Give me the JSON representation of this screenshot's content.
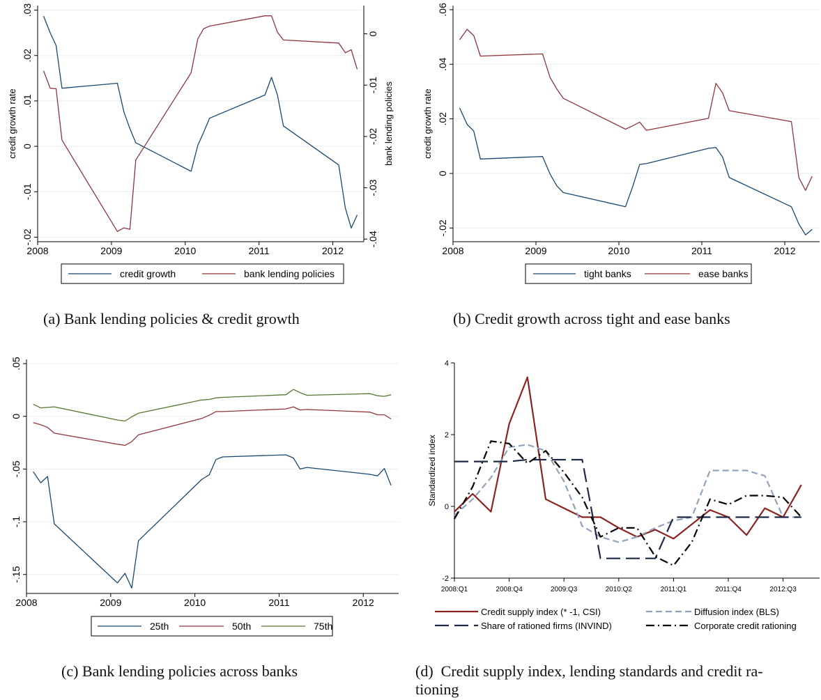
{
  "captions": {
    "a": "(a)  Bank lending policies & credit growth",
    "b": "(b)  Credit growth across tight and ease banks",
    "c": "(c)  Bank lending policies across banks",
    "d": "(d)  Credit supply index, lending standards and credit ra-\ntioning"
  },
  "colors": {
    "navy": "#1a476f",
    "maroon": "#90353b",
    "green": "#55752f",
    "dark_red": "#8b2323",
    "gray_blue": "#8fa3bf",
    "dark_navy": "#1f2a44",
    "black": "#000000"
  },
  "chart_data": [
    {
      "id": "a",
      "type": "line",
      "ylabel": "credit growth rate",
      "y2label": "bank lending policies",
      "xlim": [
        2008,
        2012.42
      ],
      "ylim": [
        -0.021,
        0.031
      ],
      "y2lim": [
        -0.0405,
        0.0055
      ],
      "xticks": [
        2008,
        2009,
        2010,
        2011,
        2012
      ],
      "xtick_labels": [
        "2008",
        "2009",
        "2010",
        "2011",
        "2012"
      ],
      "yticks": [
        -0.02,
        -0.01,
        0,
        0.01,
        0.02,
        0.03
      ],
      "ytick_labels": [
        "-.02",
        "-.01",
        "0",
        ".01",
        ".02",
        ".03"
      ],
      "y2ticks": [
        -0.04,
        -0.03,
        -0.02,
        -0.01,
        0
      ],
      "y2tick_labels": [
        "-.04",
        "-.03",
        "-.02",
        "-.01",
        "0"
      ],
      "grid": true,
      "legend_position": "bottom",
      "series": [
        {
          "name": "credit growth",
          "color": "navy",
          "axis": "left",
          "x": [
            2008.08,
            2008.17,
            2008.25,
            2008.33,
            2009.08,
            2009.17,
            2009.25,
            2009.33,
            2010.08,
            2010.17,
            2010.25,
            2010.33,
            2011.08,
            2011.17,
            2011.25,
            2011.33,
            2012.08,
            2012.17,
            2012.25,
            2012.33
          ],
          "y": [
            0.0287,
            0.025,
            0.0222,
            0.0128,
            0.0139,
            0.0075,
            0.0039,
            0.0008,
            -0.0055,
            0.0002,
            0.0031,
            0.0062,
            0.0113,
            0.0152,
            0.0113,
            0.0045,
            -0.0041,
            -0.0136,
            -0.018,
            -0.0151
          ]
        },
        {
          "name": "bank lending policies",
          "color": "maroon",
          "axis": "right",
          "x": [
            2008.08,
            2008.17,
            2008.25,
            2008.33,
            2009.08,
            2009.17,
            2009.25,
            2009.33,
            2010.08,
            2010.17,
            2010.25,
            2010.33,
            2011.08,
            2011.17,
            2011.25,
            2011.33,
            2012.08,
            2012.17,
            2012.25,
            2012.33
          ],
          "y": [
            -0.0072,
            -0.0106,
            -0.0107,
            -0.0207,
            -0.0385,
            -0.0378,
            -0.0381,
            -0.0246,
            -0.0076,
            -0.001,
            0.001,
            0.0015,
            0.0035,
            0.0035,
            0.0003,
            -0.0012,
            -0.0018,
            -0.0037,
            -0.0031,
            -0.0069
          ]
        }
      ]
    },
    {
      "id": "b",
      "type": "line",
      "ylabel": "credit growth rate",
      "xlim": [
        2008,
        2012.42
      ],
      "ylim": [
        -0.025,
        0.0615
      ],
      "xticks": [
        2008,
        2009,
        2010,
        2011,
        2012
      ],
      "xtick_labels": [
        "2008",
        "2009",
        "2010",
        "2011",
        "2012"
      ],
      "yticks": [
        -0.02,
        0,
        0.02,
        0.04,
        0.06
      ],
      "ytick_labels": [
        "-.02",
        "0",
        ".02",
        ".04",
        ".06"
      ],
      "grid": true,
      "legend_position": "bottom",
      "series": [
        {
          "name": "tight banks",
          "color": "navy",
          "x": [
            2008.08,
            2008.17,
            2008.25,
            2008.33,
            2009.08,
            2009.17,
            2009.25,
            2009.33,
            2010.08,
            2010.17,
            2010.25,
            2010.33,
            2011.08,
            2011.17,
            2011.25,
            2011.33,
            2012.08,
            2012.17,
            2012.25,
            2012.33
          ],
          "y": [
            0.024,
            0.018,
            0.0155,
            0.0053,
            0.0062,
            -0.0002,
            -0.0045,
            -0.007,
            -0.0122,
            -0.0045,
            0.0033,
            0.0036,
            0.0092,
            0.0095,
            0.006,
            -0.0015,
            -0.0122,
            -0.0185,
            -0.0225,
            -0.0205
          ]
        },
        {
          "name": "ease banks",
          "color": "maroon",
          "x": [
            2008.08,
            2008.17,
            2008.25,
            2008.33,
            2009.08,
            2009.17,
            2009.25,
            2009.33,
            2010.08,
            2010.17,
            2010.25,
            2010.33,
            2011.08,
            2011.17,
            2011.25,
            2011.33,
            2012.08,
            2012.17,
            2012.25,
            2012.33
          ],
          "y": [
            0.049,
            0.0528,
            0.0505,
            0.043,
            0.0438,
            0.0352,
            0.031,
            0.0275,
            0.0162,
            0.0175,
            0.0188,
            0.0158,
            0.0202,
            0.033,
            0.0295,
            0.023,
            0.019,
            -0.0015,
            -0.0062,
            -0.001
          ]
        }
      ]
    },
    {
      "id": "c",
      "type": "line",
      "ylabel": "",
      "xlim": [
        2008,
        2012.42
      ],
      "ylim": [
        -0.168,
        0.054
      ],
      "xticks": [
        2008,
        2009,
        2010,
        2011,
        2012
      ],
      "xtick_labels": [
        "2008",
        "2009",
        "2010",
        "2011",
        "2012"
      ],
      "yticks": [
        -0.15,
        -0.1,
        -0.05,
        0,
        0.05
      ],
      "ytick_labels": [
        "-.15",
        "-.1",
        "-.05",
        "0",
        ".05"
      ],
      "grid": true,
      "legend_position": "bottom",
      "series": [
        {
          "name": "25th",
          "color": "navy",
          "x": [
            2008.08,
            2008.17,
            2008.25,
            2008.33,
            2009.08,
            2009.17,
            2009.25,
            2009.33,
            2010.08,
            2010.17,
            2010.25,
            2010.33,
            2011.08,
            2011.17,
            2011.25,
            2011.33,
            2012.08,
            2012.17,
            2012.25,
            2012.33
          ],
          "y": [
            -0.0525,
            -0.063,
            -0.057,
            -0.102,
            -0.158,
            -0.149,
            -0.163,
            -0.118,
            -0.06,
            -0.0555,
            -0.041,
            -0.0385,
            -0.0365,
            -0.0395,
            -0.05,
            -0.0485,
            -0.055,
            -0.0565,
            -0.0495,
            -0.0655
          ]
        },
        {
          "name": "50th",
          "color": "maroon",
          "x": [
            2008.08,
            2008.17,
            2008.25,
            2008.33,
            2009.08,
            2009.17,
            2009.25,
            2009.33,
            2010.08,
            2010.17,
            2010.25,
            2010.33,
            2011.08,
            2011.17,
            2011.25,
            2011.33,
            2012.08,
            2012.17,
            2012.25,
            2012.33
          ],
          "y": [
            -0.006,
            -0.008,
            -0.0105,
            -0.016,
            -0.0265,
            -0.0275,
            -0.024,
            -0.0175,
            -0.002,
            0.001,
            0.0045,
            0.0045,
            0.007,
            0.009,
            0.006,
            0.0065,
            0.004,
            0.0015,
            0.0015,
            -0.0025
          ]
        },
        {
          "name": "75th",
          "color": "green",
          "x": [
            2008.08,
            2008.17,
            2008.25,
            2008.33,
            2009.08,
            2009.17,
            2009.25,
            2009.33,
            2010.08,
            2010.17,
            2010.25,
            2010.33,
            2011.08,
            2011.17,
            2011.25,
            2011.33,
            2012.08,
            2012.17,
            2012.25,
            2012.33
          ],
          "y": [
            0.0115,
            0.008,
            0.0085,
            0.009,
            -0.0035,
            -0.0045,
            -0.0005,
            0.003,
            0.0155,
            0.016,
            0.0175,
            0.018,
            0.0205,
            0.0255,
            0.0225,
            0.02,
            0.0215,
            0.0195,
            0.019,
            0.0205
          ]
        }
      ]
    },
    {
      "id": "d",
      "type": "line",
      "ylabel": "Standardized index",
      "x_is_index": true,
      "xlim": [
        0,
        20
      ],
      "ylim": [
        -2,
        4
      ],
      "xticks": [
        0,
        3,
        6,
        9,
        12,
        15,
        18
      ],
      "xtick_labels": [
        "2008:Q1",
        "2008:Q4",
        "2009:Q3",
        "2010:Q2",
        "2011:Q1",
        "2011:Q4",
        "2012:Q3"
      ],
      "yticks": [
        -2,
        0,
        2,
        4
      ],
      "ytick_labels": [
        "-2",
        "0",
        "2",
        "4"
      ],
      "grid": false,
      "legend_position": "bottom",
      "series": [
        {
          "name": "Credit supply index (* -1, CSI)",
          "color": "dark_red",
          "dash": "solid",
          "x": [
            0,
            1,
            2,
            3,
            4,
            5,
            6,
            7,
            8,
            9,
            10,
            11,
            12,
            13,
            14,
            15,
            16,
            17,
            18,
            19
          ],
          "y": [
            -0.15,
            0.35,
            -0.15,
            2.3,
            3.6,
            0.2,
            -0.05,
            -0.3,
            -0.3,
            -0.6,
            -0.85,
            -0.65,
            -0.9,
            -0.5,
            -0.1,
            -0.3,
            -0.8,
            -0.05,
            -0.3,
            0.6
          ]
        },
        {
          "name": "Diffusion index (BLS)",
          "color": "gray_blue",
          "dash": "dash",
          "x": [
            0,
            1,
            2,
            3,
            4,
            5,
            6,
            7,
            8,
            9,
            10,
            11,
            12,
            13,
            14,
            15,
            16,
            17,
            18,
            19
          ],
          "y": [
            -0.25,
            0.2,
            0.8,
            1.65,
            1.72,
            1.55,
            0.7,
            -0.55,
            -0.85,
            -1,
            -0.85,
            -0.6,
            -0.4,
            -0.3,
            1,
            1,
            1,
            0.85,
            -0.3,
            -0.3
          ]
        },
        {
          "name": "Share of rationed firms (INVIND)",
          "color": "dark_navy",
          "dash": "longdash",
          "x": [
            0,
            1,
            2,
            3,
            4,
            5,
            6,
            7,
            8,
            9,
            10,
            11,
            12,
            13,
            14,
            15,
            16,
            17,
            18,
            19
          ],
          "y": [
            1.25,
            1.25,
            1.25,
            1.25,
            1.3,
            1.3,
            1.3,
            1.3,
            -1.45,
            -1.45,
            -1.45,
            -1.45,
            -0.3,
            -0.3,
            -0.3,
            -0.3,
            -0.3,
            -0.3,
            -0.3,
            -0.3
          ]
        },
        {
          "name": "Corporate credit rationing",
          "color": "black",
          "dash": "dashdot",
          "x": [
            0,
            1,
            2,
            3,
            4,
            5,
            6,
            7,
            8,
            9,
            10,
            11,
            12,
            13,
            14,
            15,
            16,
            17,
            18,
            19
          ],
          "y": [
            -0.35,
            0.55,
            1.82,
            1.75,
            1.2,
            1.55,
            0.95,
            0.25,
            -0.85,
            -0.6,
            -0.6,
            -1.4,
            -1.65,
            -1,
            0.2,
            0.05,
            0.3,
            0.3,
            0.25,
            -0.3
          ]
        }
      ]
    }
  ]
}
